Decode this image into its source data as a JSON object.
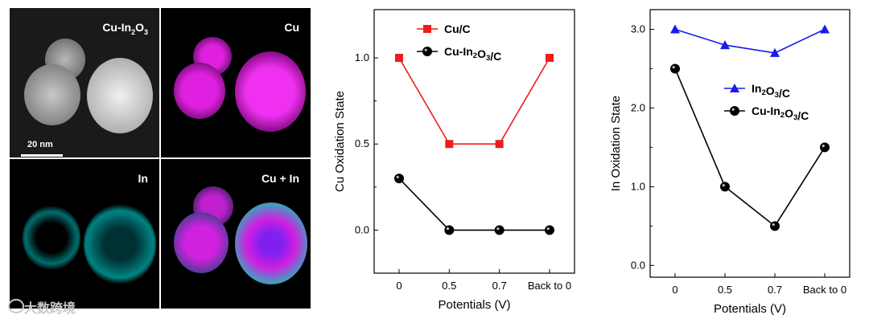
{
  "micrograph": {
    "panels": [
      {
        "label": "Cu-In2O3",
        "label_main": "Cu-In",
        "label_sub": "2",
        "label_tail": "O",
        "label_sub2": "3",
        "scale_bar": "20 nm"
      },
      {
        "label": "Cu"
      },
      {
        "label": "In"
      },
      {
        "label": "Cu + In"
      }
    ]
  },
  "chart_data": [
    {
      "type": "line",
      "xlabel": "Potentials (V)",
      "ylabel": "Cu Oxidation State",
      "categories": [
        "0",
        "0.5",
        "0.7",
        "Back to 0"
      ],
      "ylim": [
        -0.25,
        1.28
      ],
      "yticks": [
        "0.0",
        "0.5",
        "1.0"
      ],
      "legend_position": "top-center",
      "series": [
        {
          "name": "Cu/C",
          "marker": "square",
          "color": "#ee1c1c",
          "values": [
            1.0,
            0.5,
            0.5,
            1.0
          ]
        },
        {
          "name": "Cu-In2O3/C",
          "marker": "sphere",
          "color": "#000000",
          "values": [
            0.3,
            0.0,
            0.0,
            0.0
          ]
        }
      ]
    },
    {
      "type": "line",
      "xlabel": "Potentials (V)",
      "ylabel": "In Oxidation State",
      "categories": [
        "0",
        "0.5",
        "0.7",
        "Back to 0"
      ],
      "ylim": [
        -0.15,
        3.25
      ],
      "yticks": [
        "0.0",
        "1.0",
        "2.0",
        "3.0"
      ],
      "legend_position": "center-right",
      "series": [
        {
          "name": "In2O3/C",
          "marker": "triangle",
          "color": "#1a1aee",
          "values": [
            3.0,
            2.8,
            2.7,
            3.0
          ]
        },
        {
          "name": "Cu-In2O3/C",
          "marker": "sphere",
          "color": "#000000",
          "values": [
            2.5,
            1.0,
            0.5,
            1.5
          ]
        }
      ]
    }
  ],
  "watermark": "大数跨境"
}
